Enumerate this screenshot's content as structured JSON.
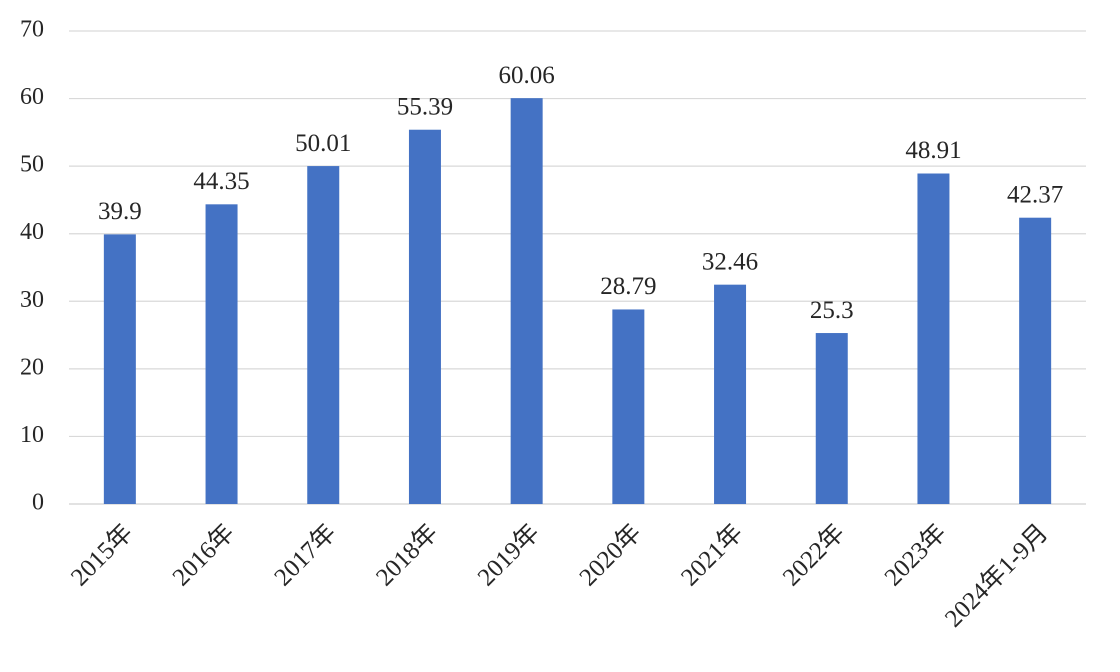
{
  "chart_data": {
    "type": "bar",
    "categories": [
      "2015年",
      "2016年",
      "2017年",
      "2018年",
      "2019年",
      "2020年",
      "2021年",
      "2022年",
      "2023年",
      "2024年1-9月"
    ],
    "values": [
      39.9,
      44.35,
      50.01,
      55.39,
      60.06,
      28.79,
      32.46,
      25.3,
      48.91,
      42.37
    ],
    "value_labels": [
      "39.9",
      "44.35",
      "50.01",
      "55.39",
      "60.06",
      "28.79",
      "32.46",
      "25.3",
      "48.91",
      "42.37"
    ],
    "ylim": [
      0,
      70
    ],
    "yticks": [
      "0",
      "10",
      "20",
      "30",
      "40",
      "50",
      "60",
      "70"
    ],
    "grid": true,
    "legend": "none",
    "colors": {
      "bar": "#4472C4",
      "grid": "#D9D9D9",
      "text": "#262626"
    }
  }
}
